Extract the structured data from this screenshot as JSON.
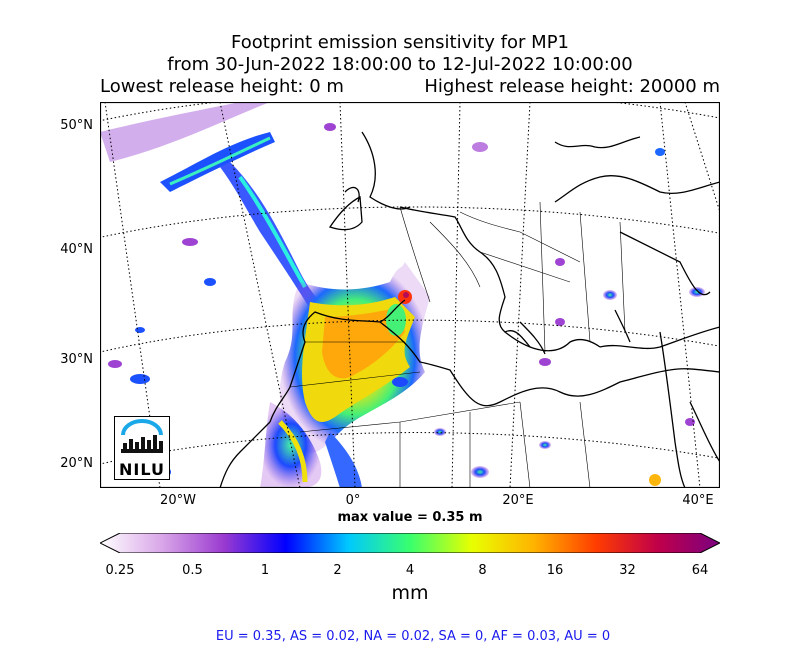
{
  "title": {
    "line1": "Footprint emission sensitivity for MP1",
    "line2": "from 30-Jun-2022 18:00:00 to 12-Jul-2022 10:00:00",
    "lowest": "Lowest release height: 0 m",
    "highest": "Highest release height: 20000 m"
  },
  "map": {
    "lat_labels": [
      "50°N",
      "40°N",
      "30°N",
      "20°N"
    ],
    "lon_labels": [
      "20°W",
      "0°",
      "20°E",
      "40°E"
    ],
    "max_value": "max value = 0.35 m",
    "logo_text": "NILU"
  },
  "colorbar": {
    "ticks": [
      "0.25",
      "0.5",
      "1",
      "2",
      "4",
      "8",
      "16",
      "32",
      "64"
    ],
    "unit": "mm",
    "colors": [
      "#ffffff",
      "#d9a6e8",
      "#9a3ad0",
      "#0000ff",
      "#00c8ff",
      "#39ff6e",
      "#e8ff00",
      "#ffb300",
      "#ff3d00",
      "#c0004a",
      "#7a0080"
    ]
  },
  "fluxes": "EU = 0.35,  AS = 0.02,  NA = 0.02,  SA = 0,  AF = 0.03,  AU = 0"
}
